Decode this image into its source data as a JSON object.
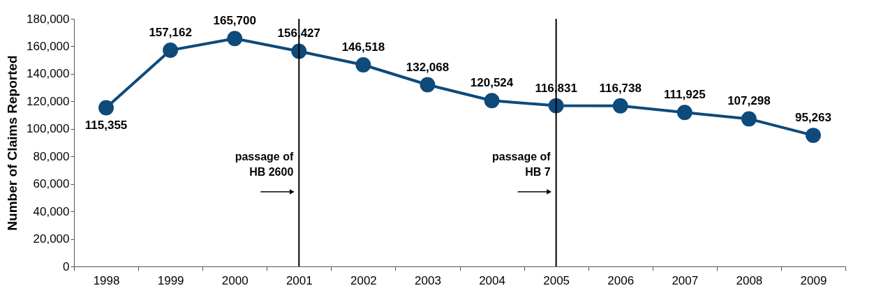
{
  "chart_data": {
    "type": "line",
    "ylabel": "Number of Claims Reported",
    "categories": [
      "1998",
      "1999",
      "2000",
      "2001",
      "2002",
      "2003",
      "2004",
      "2005",
      "2006",
      "2007",
      "2008",
      "2009"
    ],
    "series": [
      {
        "color": "#0e4a7a",
        "values": [
          115355,
          157162,
          165700,
          156427,
          146518,
          132068,
          120524,
          116831,
          116738,
          111925,
          107298,
          95263
        ]
      }
    ],
    "value_labels": [
      "115,355",
      "157,162",
      "165,700",
      "156,427",
      "146,518",
      "132,068",
      "120,524",
      "116,831",
      "116,738",
      "111,925",
      "107,298",
      "95,263"
    ],
    "ylim": [
      0,
      180000
    ],
    "yticks": [
      0,
      {
        "value": 20000,
        "label": "20,000"
      },
      {
        "value": 40000,
        "label": "40,000"
      },
      {
        "value": 60000,
        "label": "60,000"
      },
      {
        "value": 80000,
        "label": "80,000"
      },
      {
        "value": 100000,
        "label": "100,000"
      },
      {
        "value": 120000,
        "label": "120,000"
      },
      {
        "value": 140000,
        "label": "140,000"
      },
      {
        "value": 160000,
        "label": "160,000"
      },
      {
        "value": 180000,
        "label": "180,000"
      }
    ],
    "grid": false,
    "marker": "circle",
    "line_style": "solid",
    "ref_lines": [
      {
        "axis": "x",
        "value": "2001",
        "label": "passage of\nHB 2600",
        "color": "#000000"
      },
      {
        "axis": "x",
        "value": "2005",
        "label": "passage of\nHB 7",
        "color": "#000000"
      }
    ]
  }
}
